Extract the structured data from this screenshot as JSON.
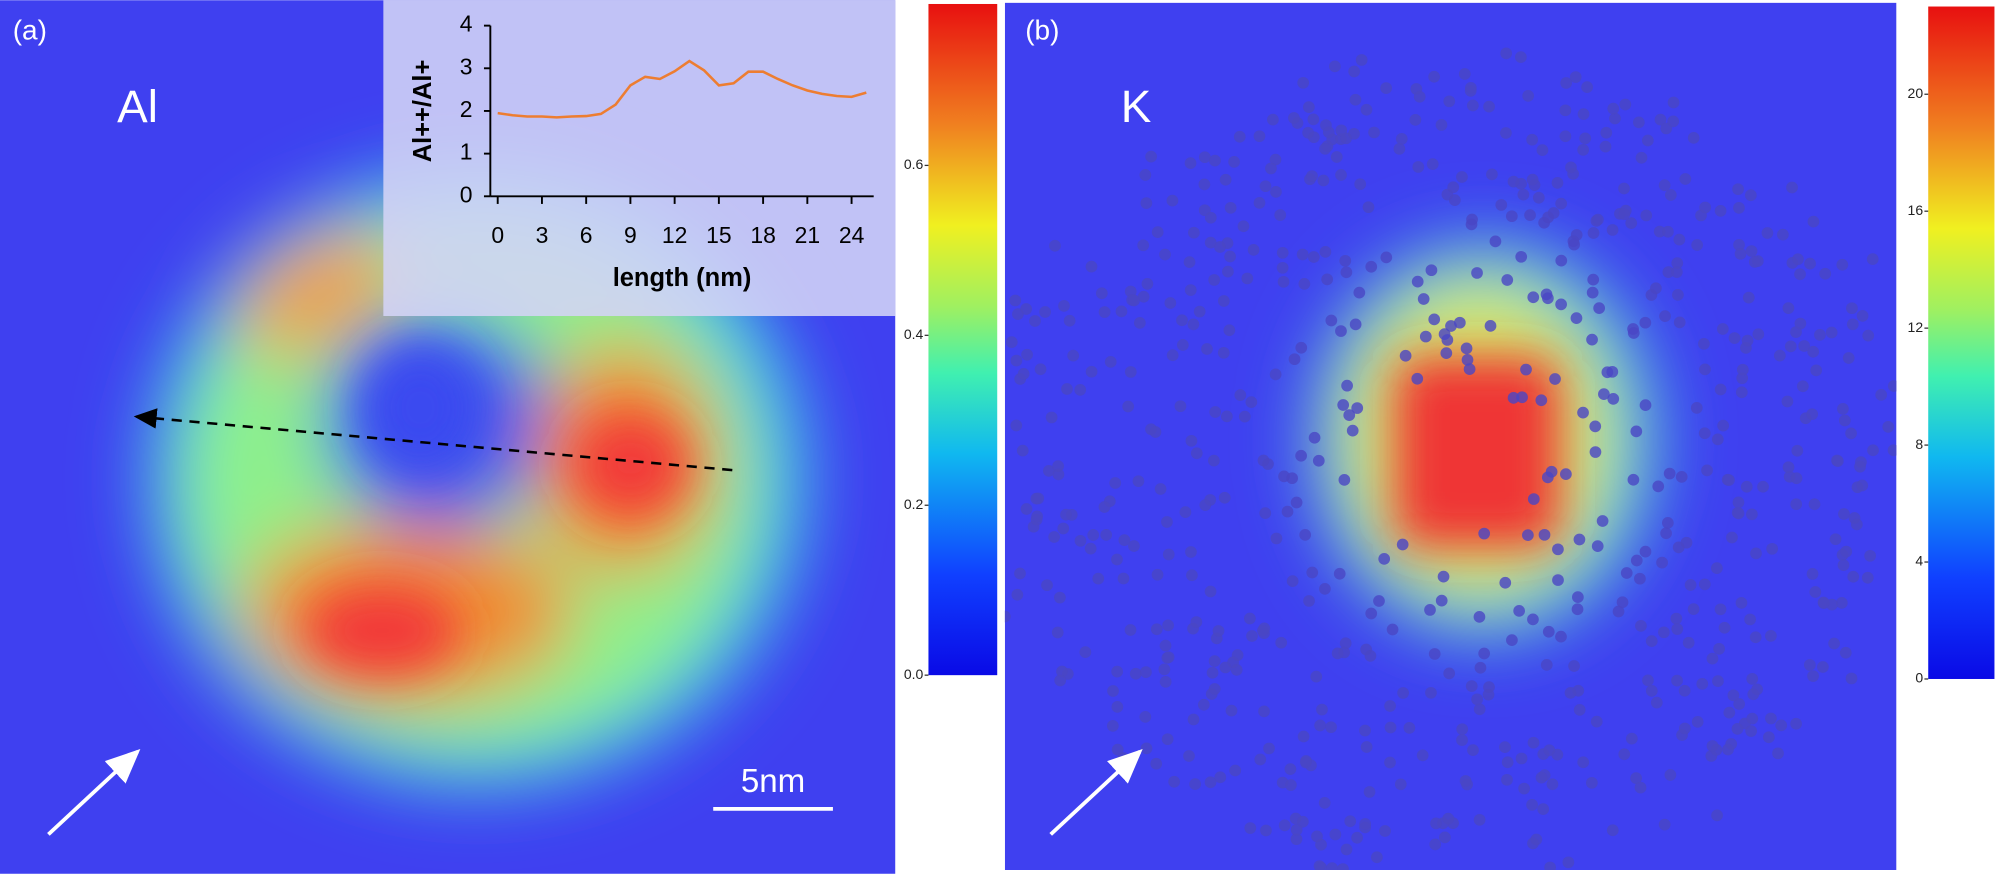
{
  "panels": [
    {
      "label": "(a)",
      "element": "Al",
      "scale_bar": "5nm"
    },
    {
      "label": "(b)",
      "element": "K"
    }
  ],
  "chart_data": [
    {
      "type": "line",
      "xlabel": "length (nm)",
      "ylabel": "Al++/Al+",
      "x": [
        0,
        1,
        2,
        3,
        4,
        5,
        6,
        7,
        8,
        9,
        10,
        11,
        12,
        13,
        14,
        15,
        16,
        17,
        18,
        19,
        20,
        21,
        22,
        23,
        24,
        25
      ],
      "values": [
        1.95,
        1.9,
        1.87,
        1.87,
        1.85,
        1.87,
        1.88,
        1.93,
        2.15,
        2.6,
        2.8,
        2.75,
        2.93,
        3.17,
        2.95,
        2.6,
        2.65,
        2.92,
        2.92,
        2.75,
        2.6,
        2.48,
        2.4,
        2.35,
        2.33,
        2.43
      ],
      "color": "#ed7d31",
      "xlim": [
        -0.5,
        25.5
      ],
      "ylim": [
        0,
        4
      ],
      "xticks": [
        0,
        3,
        6,
        9,
        12,
        15,
        18,
        21,
        24
      ],
      "yticks": [
        0,
        1,
        2,
        3,
        4
      ]
    },
    {
      "type": "colorbar",
      "colormap": "jet",
      "ylim": [
        0,
        0.79
      ],
      "yticks": [
        {
          "value": 0,
          "label": "0.0"
        },
        0.2,
        0.4,
        0.6
      ]
    },
    {
      "type": "colorbar",
      "colormap": "jet",
      "ylim": [
        0,
        23
      ],
      "yticks": [
        0,
        4,
        8,
        12,
        16,
        20
      ]
    }
  ]
}
